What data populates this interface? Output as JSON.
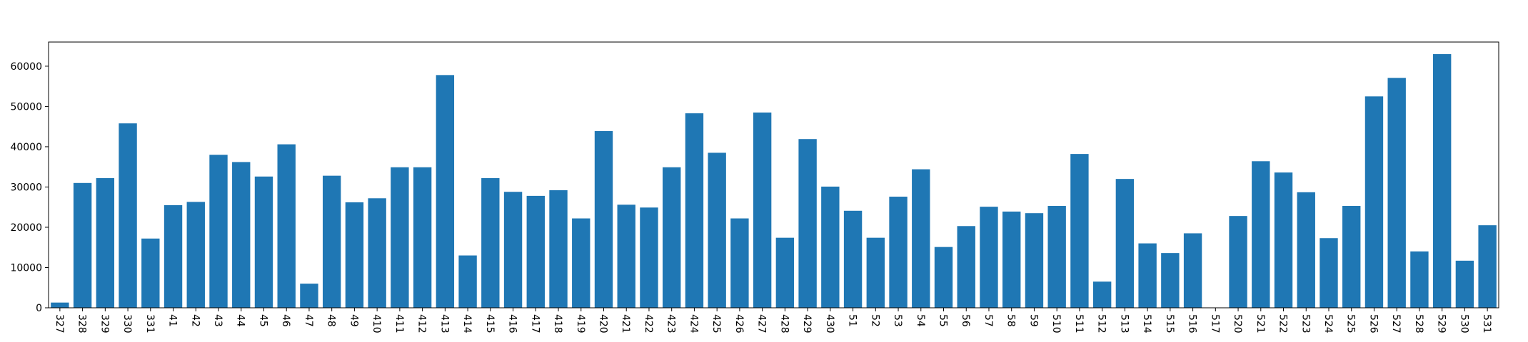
{
  "chart_data": {
    "type": "bar",
    "title": "",
    "xlabel": "",
    "ylabel": "",
    "ylim": [
      0,
      66000
    ],
    "yticks": [
      0,
      10000,
      20000,
      30000,
      40000,
      50000,
      60000
    ],
    "grid": false,
    "legend": "none",
    "bar_color": "#1f77b4",
    "categories": [
      "327",
      "328",
      "329",
      "330",
      "331",
      "41",
      "42",
      "43",
      "44",
      "45",
      "46",
      "47",
      "48",
      "49",
      "410",
      "411",
      "412",
      "413",
      "414",
      "415",
      "416",
      "417",
      "418",
      "419",
      "420",
      "421",
      "422",
      "423",
      "424",
      "425",
      "426",
      "427",
      "428",
      "429",
      "430",
      "51",
      "52",
      "53",
      "54",
      "55",
      "56",
      "57",
      "58",
      "59",
      "510",
      "511",
      "512",
      "513",
      "514",
      "515",
      "516",
      "517",
      "520",
      "521",
      "522",
      "523",
      "524",
      "525",
      "526",
      "527",
      "528",
      "529",
      "530",
      "531"
    ],
    "values": [
      1300,
      31000,
      32200,
      45800,
      17200,
      25500,
      26300,
      38000,
      36200,
      32600,
      40600,
      6000,
      32800,
      26200,
      27200,
      34900,
      34900,
      57800,
      13000,
      32200,
      28800,
      27800,
      29200,
      22200,
      43900,
      25600,
      24900,
      34900,
      48300,
      38500,
      22200,
      48500,
      17400,
      41900,
      30100,
      24100,
      17400,
      27600,
      34400,
      15100,
      20300,
      25100,
      23900,
      23500,
      25300,
      38200,
      6500,
      32000,
      16000,
      13600,
      18500,
      0,
      22800,
      36400,
      33600,
      28700,
      17300,
      25300,
      52500,
      57100,
      14000,
      63000,
      11700,
      20500
    ]
  }
}
